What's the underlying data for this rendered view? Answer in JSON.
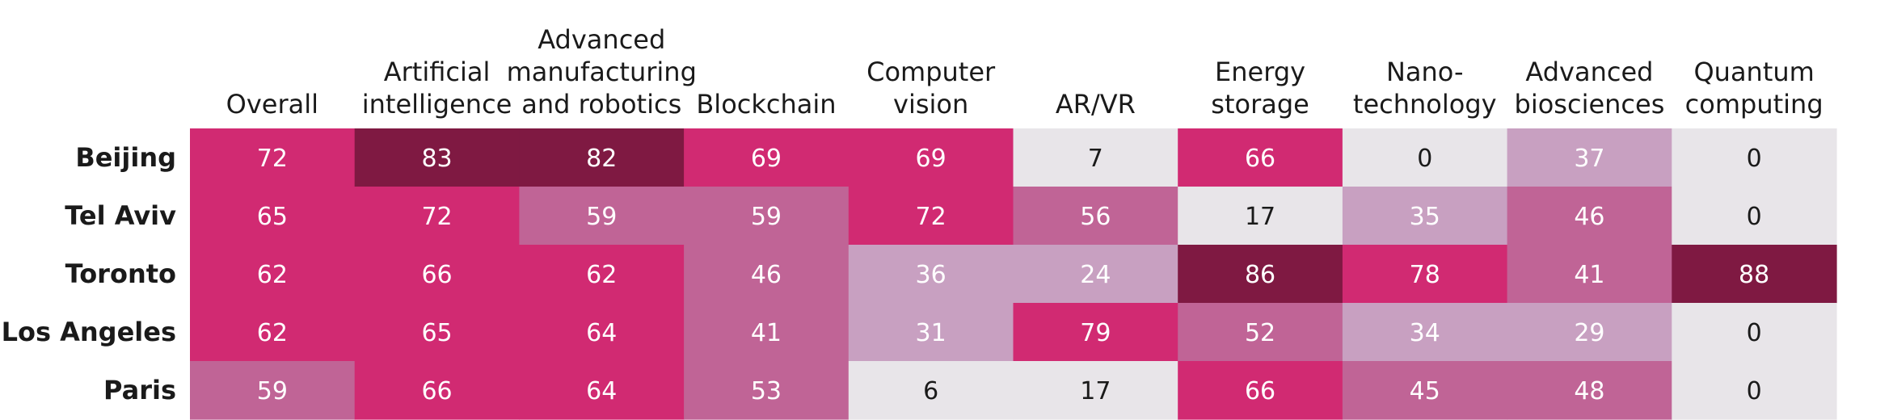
{
  "chart_data": {
    "type": "heatmap",
    "columns": [
      [
        "Overall"
      ],
      [
        "Artificial",
        "intelligence"
      ],
      [
        "Advanced",
        "manufacturing",
        "and robotics"
      ],
      [
        "Blockchain"
      ],
      [
        "Computer",
        "vision"
      ],
      [
        "AR/VR"
      ],
      [
        "Energy",
        "storage"
      ],
      [
        "Nano-",
        "technology"
      ],
      [
        "Advanced",
        "biosciences"
      ],
      [
        "Quantum",
        "computing"
      ]
    ],
    "rows": [
      "Beijing",
      "Tel Aviv",
      "Toronto",
      "Los Angeles",
      "Paris"
    ],
    "values": [
      [
        72,
        83,
        82,
        69,
        69,
        7,
        66,
        0,
        37,
        0
      ],
      [
        65,
        72,
        59,
        59,
        72,
        56,
        17,
        35,
        46,
        0
      ],
      [
        62,
        66,
        62,
        46,
        36,
        24,
        86,
        78,
        41,
        88
      ],
      [
        62,
        65,
        64,
        41,
        31,
        79,
        52,
        34,
        29,
        0
      ],
      [
        59,
        66,
        64,
        53,
        6,
        17,
        66,
        45,
        48,
        0
      ]
    ],
    "colors": {
      "darkest": "#7f1942",
      "strong": "#d12a72",
      "medium": "#c06496",
      "light": "#c8a0c1",
      "pale": "#e8e5e9",
      "text_light": "#ffffff",
      "text_dark": "#1a1a1a"
    }
  }
}
